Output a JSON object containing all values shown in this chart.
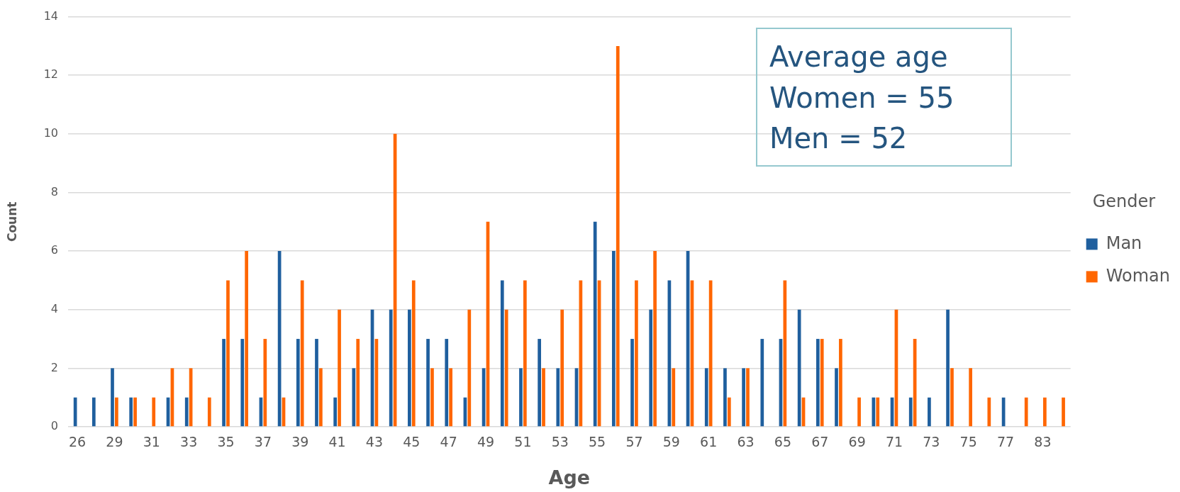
{
  "chart_data": {
    "type": "bar",
    "xlabel": "Age",
    "ylabel": "Count",
    "legend_title": "Gender",
    "legend": "right",
    "grid": "y",
    "categories": [
      "26",
      null,
      "29",
      null,
      "31",
      null,
      "33",
      null,
      "35",
      null,
      "37",
      null,
      "39",
      null,
      "41",
      null,
      "43",
      null,
      "45",
      null,
      "47",
      null,
      "49",
      null,
      "51",
      null,
      "53",
      null,
      "55",
      null,
      "57",
      null,
      "59",
      null,
      "61",
      null,
      "63",
      null,
      "65",
      null,
      "67",
      null,
      "69",
      null,
      "71",
      null,
      "73",
      null,
      "75",
      null,
      "77",
      null,
      "83",
      null
    ],
    "series": [
      {
        "name": "Man",
        "color": "#1f5f9e",
        "values": [
          1,
          1,
          2,
          1,
          null,
          1,
          1,
          null,
          3,
          3,
          1,
          6,
          3,
          3,
          1,
          2,
          4,
          4,
          4,
          3,
          3,
          1,
          2,
          5,
          2,
          3,
          2,
          2,
          7,
          6,
          3,
          4,
          5,
          6,
          2,
          2,
          2,
          3,
          3,
          4,
          3,
          2,
          null,
          1,
          1,
          1,
          1,
          4,
          null,
          null,
          1,
          null,
          null,
          null
        ]
      },
      {
        "name": "Woman",
        "color": "#ff6600",
        "values": [
          null,
          null,
          1,
          1,
          1,
          2,
          2,
          1,
          5,
          6,
          3,
          1,
          5,
          2,
          4,
          3,
          3,
          10,
          5,
          2,
          2,
          4,
          7,
          4,
          5,
          2,
          4,
          5,
          5,
          13,
          5,
          6,
          2,
          5,
          5,
          1,
          2,
          null,
          5,
          1,
          3,
          3,
          1,
          1,
          4,
          3,
          null,
          2,
          2,
          1,
          null,
          1,
          1,
          1
        ]
      }
    ],
    "ylim": [
      0,
      14
    ],
    "yticks": [
      0,
      2,
      4,
      6,
      8,
      10,
      12,
      14
    ],
    "annotations": [
      "Average age",
      "Women = 55",
      "Men = 52"
    ]
  }
}
